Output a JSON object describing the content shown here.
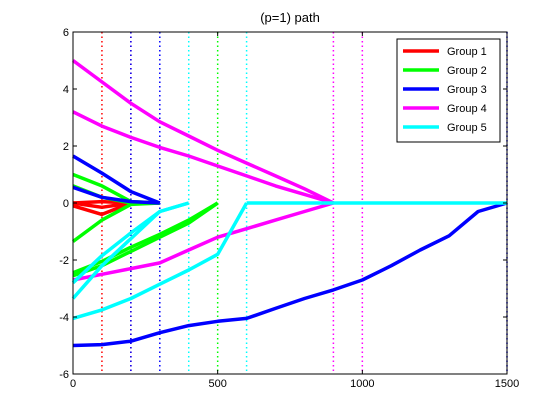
{
  "chart_data": {
    "type": "line",
    "title": "(p=1) path",
    "xlabel": "",
    "ylabel": "",
    "xlim": [
      0,
      1500
    ],
    "ylim": [
      -6,
      6
    ],
    "x_ticks": [
      0,
      500,
      1000,
      1500
    ],
    "y_ticks": [
      -6,
      -4,
      -2,
      0,
      2,
      4,
      6
    ],
    "grid": false,
    "legend_position": "top-right",
    "colors": {
      "Group 1": "#ff0000",
      "Group 2": "#00ff00",
      "Group 3": "#0000ff",
      "Group 4": "#ff00ff",
      "Group 5": "#00ffff"
    },
    "legend": [
      "Group 1",
      "Group 2",
      "Group 3",
      "Group 4",
      "Group 5"
    ],
    "vertical_lines": [
      {
        "x": 100,
        "group": "Group 1"
      },
      {
        "x": 200,
        "group": "Group 1"
      },
      {
        "x": 200,
        "group": "Group 3"
      },
      {
        "x": 300,
        "group": "Group 3"
      },
      {
        "x": 400,
        "group": "Group 5"
      },
      {
        "x": 500,
        "group": "Group 2"
      },
      {
        "x": 600,
        "group": "Group 5"
      },
      {
        "x": 900,
        "group": "Group 4"
      },
      {
        "x": 1000,
        "group": "Group 4"
      },
      {
        "x": 1500,
        "group": "Group 3"
      }
    ],
    "series": [
      {
        "group": "Group 1",
        "x": [
          0,
          100,
          200
        ],
        "y": [
          0,
          -0.15,
          0
        ]
      },
      {
        "group": "Group 1",
        "x": [
          0,
          100,
          200
        ],
        "y": [
          0,
          0.05,
          0
        ]
      },
      {
        "group": "Group 1",
        "x": [
          0,
          100,
          200
        ],
        "y": [
          -0.1,
          -0.4,
          0
        ]
      },
      {
        "group": "Group 2",
        "x": [
          0,
          100,
          200,
          300
        ],
        "y": [
          1.0,
          0.6,
          0.05,
          0
        ]
      },
      {
        "group": "Group 2",
        "x": [
          0,
          100,
          200,
          300
        ],
        "y": [
          0.6,
          0.2,
          0,
          0
        ]
      },
      {
        "group": "Group 2",
        "x": [
          0,
          100,
          200,
          300
        ],
        "y": [
          -1.35,
          -0.6,
          -0.05,
          0
        ]
      },
      {
        "group": "Group 2",
        "x": [
          0,
          100,
          200,
          300,
          400,
          500
        ],
        "y": [
          -2.45,
          -2.05,
          -1.55,
          -1.1,
          -0.6,
          0
        ]
      },
      {
        "group": "Group 2",
        "x": [
          0,
          100,
          200,
          300,
          400,
          500
        ],
        "y": [
          -2.55,
          -2.2,
          -1.7,
          -1.2,
          -0.7,
          0
        ]
      },
      {
        "group": "Group 3",
        "x": [
          0,
          100,
          200,
          300
        ],
        "y": [
          1.65,
          1.05,
          0.4,
          0
        ]
      },
      {
        "group": "Group 3",
        "x": [
          0,
          100,
          200,
          300
        ],
        "y": [
          0.55,
          0.2,
          0.05,
          0
        ]
      },
      {
        "group": "Group 3",
        "x": [
          0,
          100,
          200,
          300,
          400,
          500,
          600,
          700,
          800,
          900,
          1000,
          1100,
          1200,
          1300,
          1400,
          1500
        ],
        "y": [
          -5.0,
          -4.97,
          -4.85,
          -4.55,
          -4.3,
          -4.15,
          -4.05,
          -3.7,
          -3.35,
          -3.05,
          -2.7,
          -2.2,
          -1.65,
          -1.15,
          -0.3,
          0
        ]
      },
      {
        "group": "Group 4",
        "x": [
          0,
          100,
          200,
          300,
          400,
          500,
          600,
          700,
          800,
          900
        ],
        "y": [
          5.0,
          4.25,
          3.5,
          2.85,
          2.35,
          1.85,
          1.4,
          0.95,
          0.5,
          0
        ]
      },
      {
        "group": "Group 4",
        "x": [
          0,
          100,
          200,
          300,
          400,
          500,
          600,
          700,
          800,
          900
        ],
        "y": [
          3.2,
          2.7,
          2.3,
          1.95,
          1.65,
          1.3,
          0.95,
          0.6,
          0.3,
          0
        ]
      },
      {
        "group": "Group 4",
        "x": [
          0,
          100,
          200,
          300,
          400,
          500,
          600,
          700,
          800,
          900
        ],
        "y": [
          -2.7,
          -2.5,
          -2.3,
          -2.1,
          -1.65,
          -1.2,
          -0.9,
          -0.6,
          -0.3,
          0
        ]
      },
      {
        "group": "Group 5",
        "x": [
          0,
          100,
          200,
          300,
          400
        ],
        "y": [
          -2.8,
          -1.85,
          -1.05,
          -0.3,
          0
        ]
      },
      {
        "group": "Group 5",
        "x": [
          0,
          100,
          200,
          300,
          400
        ],
        "y": [
          -3.35,
          -2.2,
          -1.25,
          -0.3,
          0
        ]
      },
      {
        "group": "Group 5",
        "x": [
          0,
          100,
          200,
          300,
          400,
          500,
          600
        ],
        "y": [
          -4.05,
          -3.75,
          -3.35,
          -2.85,
          -2.35,
          -1.8,
          0
        ]
      },
      {
        "group": "Group 5",
        "x": [
          600,
          900,
          1500
        ],
        "y": [
          0,
          0,
          0
        ]
      }
    ]
  }
}
